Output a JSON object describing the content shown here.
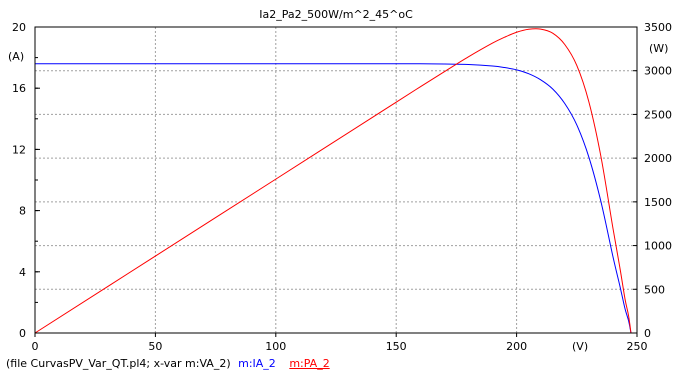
{
  "chart_data": {
    "type": "line",
    "title": "Ia2_Pa2_500W/m^2_45^oC",
    "xlabel": "(V)",
    "ylabel_left": "(A)",
    "ylabel_right": "(W)",
    "xlim": [
      0,
      250
    ],
    "ylim_left": [
      0,
      20
    ],
    "ylim_right": [
      0,
      3500
    ],
    "x_ticks": [
      "0",
      "50",
      "100",
      "150",
      "200",
      "250"
    ],
    "y_ticks_left": [
      "0",
      "4",
      "8",
      "12",
      "16",
      "20"
    ],
    "y_ticks_right": [
      "0",
      "500",
      "1000",
      "1500",
      "2000",
      "2500",
      "3000",
      "3500"
    ],
    "grid": true,
    "series": [
      {
        "name": "m:IA_2",
        "axis": "left",
        "color": "#0000ff",
        "x": [
          0,
          50,
          100,
          150,
          160,
          170,
          180,
          190,
          195,
          200,
          205,
          210,
          215,
          220,
          225,
          230,
          235,
          240,
          243,
          245,
          246.5,
          247.5
        ],
        "values": [
          17.6,
          17.6,
          17.6,
          17.6,
          17.6,
          17.58,
          17.55,
          17.45,
          17.35,
          17.2,
          16.95,
          16.55,
          15.95,
          15.0,
          13.6,
          11.5,
          8.6,
          5.0,
          3.0,
          1.6,
          0.8,
          0
        ]
      },
      {
        "name": "m:PA_2",
        "axis": "right",
        "color": "#ff0000",
        "x": [
          0,
          50,
          100,
          150,
          160,
          170,
          180,
          190,
          195,
          200,
          205,
          210,
          215,
          220,
          225,
          230,
          235,
          240,
          243,
          245,
          246.5,
          247.5
        ],
        "values": [
          0,
          880,
          1760,
          2640,
          2816,
          2989,
          3159,
          3316,
          3383,
          3440,
          3474,
          3476,
          3429,
          3300,
          3060,
          2645,
          2021,
          1200,
          729,
          392,
          197,
          0
        ]
      }
    ]
  },
  "footer": {
    "file_text": "(file CurvasPV_Var_QT.pl4; x-var m:VA_2)",
    "ia_label": "m:IA_2",
    "pa_label": "m:PA_2"
  }
}
